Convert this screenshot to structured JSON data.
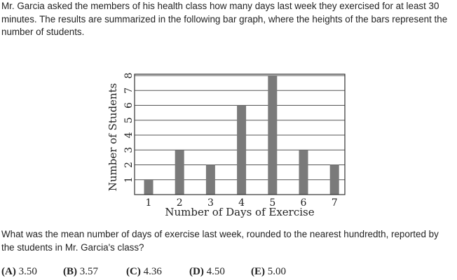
{
  "problem": {
    "intro": "Mr. Garcia asked the members of his health class how many days last week they exercised for at least 30 minutes. The results are summarized in the following bar graph, where the heights of the bars represent the number of students.",
    "question": "What was the mean number of days of exercise last week, rounded to the nearest hundredth, reported by the students in Mr. Garcia's class?",
    "choices": [
      {
        "letter": "(A)",
        "value": "3.50"
      },
      {
        "letter": "(B)",
        "value": "3.57"
      },
      {
        "letter": "(C)",
        "value": "4.36"
      },
      {
        "letter": "(D)",
        "value": "4.50"
      },
      {
        "letter": "(E)",
        "value": "5.00"
      }
    ]
  },
  "chart_data": {
    "type": "bar",
    "categories": [
      "1",
      "2",
      "3",
      "4",
      "5",
      "6",
      "7"
    ],
    "values": [
      1,
      3,
      2,
      6,
      8,
      3,
      2
    ],
    "title": "",
    "xlabel": "Number of Days of Exercise",
    "ylabel": "Number of Students",
    "ylim": [
      0,
      8
    ],
    "yticks": [
      "1",
      "2",
      "3",
      "4",
      "5",
      "6",
      "7",
      "8"
    ],
    "grid": true,
    "bar_color": "#7a7a7a",
    "grid_color": "#555555"
  }
}
